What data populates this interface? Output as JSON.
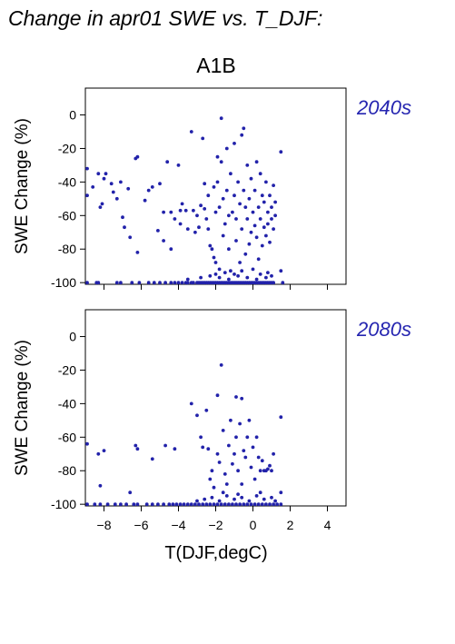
{
  "page": {
    "title": "Change in apr01 SWE vs. T_DJF:",
    "scenario": "A1B",
    "xlabel": "T(DJF,degC)"
  },
  "colors": {
    "points": "#2222aa",
    "period_label": "#2525b0",
    "axis": "#000000"
  },
  "chart_data": [
    {
      "type": "scatter",
      "period": "2040s",
      "title": "",
      "xlabel": "",
      "ylabel": "SWE Change (%)",
      "xlim": [
        -9,
        5
      ],
      "ylim": [
        -101,
        16
      ],
      "x_ticks": [
        -8,
        -6,
        -4,
        -2,
        0,
        2,
        4
      ],
      "y_ticks": [
        0,
        -20,
        -40,
        -60,
        -80,
        -100
      ],
      "grid": false,
      "points": [
        [
          -8.9,
          -32
        ],
        [
          -8.9,
          -48
        ],
        [
          -8.6,
          -43
        ],
        [
          -8.4,
          -100
        ],
        [
          -8.3,
          -35
        ],
        [
          -8.2,
          -55
        ],
        [
          -8.1,
          -53
        ],
        [
          -8.0,
          -38
        ],
        [
          -7.9,
          -35
        ],
        [
          -7.6,
          -41
        ],
        [
          -7.5,
          -46
        ],
        [
          -7.3,
          -50
        ],
        [
          -7.1,
          -40
        ],
        [
          -7.0,
          -61
        ],
        [
          -6.9,
          -67
        ],
        [
          -6.7,
          -44
        ],
        [
          -6.6,
          -73
        ],
        [
          -6.3,
          -26
        ],
        [
          -6.2,
          -25
        ],
        [
          -6.2,
          -82
        ],
        [
          -5.8,
          -51
        ],
        [
          -5.6,
          -45
        ],
        [
          -5.4,
          -43
        ],
        [
          -5.1,
          -69
        ],
        [
          -5.0,
          -41
        ],
        [
          -4.8,
          -58
        ],
        [
          -4.8,
          -75
        ],
        [
          -4.6,
          -28
        ],
        [
          -4.4,
          -58
        ],
        [
          -4.4,
          -80
        ],
        [
          -4.2,
          -62
        ],
        [
          -4.0,
          -30
        ],
        [
          -3.9,
          -57
        ],
        [
          -3.9,
          -65
        ],
        [
          -3.8,
          -53
        ],
        [
          -3.6,
          -57
        ],
        [
          -3.5,
          -68
        ],
        [
          -3.3,
          -10
        ],
        [
          -3.2,
          -57
        ],
        [
          -3.1,
          -70
        ],
        [
          -3.0,
          -60
        ],
        [
          -2.9,
          -67
        ],
        [
          -2.8,
          -54
        ],
        [
          -2.7,
          -14
        ],
        [
          -2.6,
          -41
        ],
        [
          -2.6,
          -56
        ],
        [
          -2.5,
          -62
        ],
        [
          -2.4,
          -48
        ],
        [
          -2.4,
          -68
        ],
        [
          -2.3,
          -78
        ],
        [
          -2.2,
          -80
        ],
        [
          -2.1,
          -43
        ],
        [
          -2.1,
          -85
        ],
        [
          -2.0,
          -58
        ],
        [
          -2.0,
          -88
        ],
        [
          -1.9,
          -25
        ],
        [
          -1.9,
          -40
        ],
        [
          -1.8,
          -92
        ],
        [
          -1.8,
          -55
        ],
        [
          -1.7,
          -2
        ],
        [
          -1.7,
          -28
        ],
        [
          -1.6,
          -50
        ],
        [
          -1.6,
          -72
        ],
        [
          -1.5,
          -65
        ],
        [
          -1.4,
          -20
        ],
        [
          -1.4,
          -45
        ],
        [
          -1.3,
          -80
        ],
        [
          -1.3,
          -60
        ],
        [
          -1.2,
          -35
        ],
        [
          -1.2,
          -93
        ],
        [
          -1.1,
          -58
        ],
        [
          -1.0,
          -17
        ],
        [
          -1.0,
          -48
        ],
        [
          -0.9,
          -75
        ],
        [
          -0.9,
          -62
        ],
        [
          -0.8,
          -40
        ],
        [
          -0.7,
          -53
        ],
        [
          -0.7,
          -88
        ],
        [
          -0.6,
          -12
        ],
        [
          -0.6,
          -68
        ],
        [
          -0.5,
          -8
        ],
        [
          -0.5,
          -45
        ],
        [
          -0.4,
          -55
        ],
        [
          -0.4,
          -83
        ],
        [
          -0.3,
          -30
        ],
        [
          -0.3,
          -62
        ],
        [
          -0.2,
          -50
        ],
        [
          -0.2,
          -77
        ],
        [
          -0.1,
          -38
        ],
        [
          -0.1,
          -70
        ],
        [
          0.0,
          -58
        ],
        [
          0.0,
          -92
        ],
        [
          0.1,
          -45
        ],
        [
          0.1,
          -66
        ],
        [
          0.2,
          -28
        ],
        [
          0.2,
          -73
        ],
        [
          0.3,
          -55
        ],
        [
          0.3,
          -86
        ],
        [
          0.4,
          -35
        ],
        [
          0.4,
          -62
        ],
        [
          0.5,
          -48
        ],
        [
          0.5,
          -78
        ],
        [
          0.6,
          -67
        ],
        [
          0.6,
          -52
        ],
        [
          0.7,
          -40
        ],
        [
          0.7,
          -72
        ],
        [
          0.8,
          -58
        ],
        [
          0.8,
          -65
        ],
        [
          0.9,
          -48
        ],
        [
          0.9,
          -76
        ],
        [
          1.0,
          -62
        ],
        [
          1.0,
          -55
        ],
        [
          1.1,
          -42
        ],
        [
          1.1,
          -68
        ],
        [
          1.2,
          -60
        ],
        [
          1.2,
          -52
        ],
        [
          1.5,
          -22
        ],
        [
          1.5,
          -93
        ],
        [
          1.6,
          -100
        ],
        [
          -8.9,
          -100
        ],
        [
          -8.3,
          -100
        ],
        [
          -7.3,
          -100
        ],
        [
          -7.1,
          -100
        ],
        [
          -6.5,
          -100
        ],
        [
          -6.1,
          -100
        ],
        [
          -5.6,
          -100
        ],
        [
          -5.3,
          -100
        ],
        [
          -5.0,
          -100
        ],
        [
          -4.7,
          -100
        ],
        [
          -4.4,
          -100
        ],
        [
          -4.2,
          -100
        ],
        [
          -4.0,
          -100
        ],
        [
          -3.8,
          -100
        ],
        [
          -3.6,
          -100
        ],
        [
          -3.5,
          -100
        ],
        [
          -3.3,
          -100
        ],
        [
          -3.2,
          -100
        ],
        [
          -3.0,
          -100
        ],
        [
          -2.9,
          -100
        ],
        [
          -2.8,
          -100
        ],
        [
          -2.7,
          -100
        ],
        [
          -2.6,
          -100
        ],
        [
          -2.5,
          -100
        ],
        [
          -2.4,
          -100
        ],
        [
          -2.3,
          -100
        ],
        [
          -2.2,
          -100
        ],
        [
          -2.1,
          -100
        ],
        [
          -2.0,
          -100
        ],
        [
          -1.9,
          -100
        ],
        [
          -1.8,
          -100
        ],
        [
          -1.7,
          -100
        ],
        [
          -1.6,
          -100
        ],
        [
          -1.5,
          -100
        ],
        [
          -1.4,
          -100
        ],
        [
          -1.3,
          -100
        ],
        [
          -1.2,
          -100
        ],
        [
          -1.1,
          -100
        ],
        [
          -1.0,
          -100
        ],
        [
          -0.9,
          -100
        ],
        [
          -0.8,
          -100
        ],
        [
          -0.7,
          -100
        ],
        [
          -0.6,
          -100
        ],
        [
          -0.5,
          -100
        ],
        [
          -0.4,
          -100
        ],
        [
          -0.3,
          -100
        ],
        [
          -0.2,
          -100
        ],
        [
          -0.1,
          -100
        ],
        [
          0.0,
          -100
        ],
        [
          0.1,
          -100
        ],
        [
          0.2,
          -100
        ],
        [
          0.3,
          -100
        ],
        [
          0.4,
          -100
        ],
        [
          0.5,
          -100
        ],
        [
          0.6,
          -100
        ],
        [
          0.7,
          -100
        ],
        [
          0.8,
          -100
        ],
        [
          0.9,
          -100
        ],
        [
          1.0,
          -100
        ],
        [
          1.1,
          -100
        ],
        [
          -2.8,
          -97
        ],
        [
          -2.3,
          -96
        ],
        [
          -1.8,
          -97
        ],
        [
          -1.3,
          -98
        ],
        [
          -0.8,
          -96
        ],
        [
          -0.3,
          -97
        ],
        [
          0.2,
          -98
        ],
        [
          0.7,
          -97
        ],
        [
          -3.5,
          -98
        ],
        [
          -2.0,
          -95
        ],
        [
          -1.0,
          -95
        ],
        [
          0.4,
          -95
        ],
        [
          1.0,
          -96
        ],
        [
          -1.5,
          -94
        ],
        [
          -0.6,
          -93
        ],
        [
          0.8,
          -94
        ]
      ]
    },
    {
      "type": "scatter",
      "period": "2080s",
      "title": "",
      "xlabel": "T(DJF,degC)",
      "ylabel": "SWE Change (%)",
      "xlim": [
        -9,
        5
      ],
      "ylim": [
        -101,
        16
      ],
      "x_ticks": [
        -8,
        -6,
        -4,
        -2,
        0,
        2,
        4
      ],
      "y_ticks": [
        0,
        -20,
        -40,
        -60,
        -80,
        -100
      ],
      "grid": false,
      "points": [
        [
          -8.9,
          -64
        ],
        [
          -8.3,
          -70
        ],
        [
          -8.2,
          -89
        ],
        [
          -8.0,
          -68
        ],
        [
          -6.6,
          -93
        ],
        [
          -6.3,
          -65
        ],
        [
          -6.2,
          -67
        ],
        [
          -5.4,
          -73
        ],
        [
          -4.7,
          -65
        ],
        [
          -4.2,
          -67
        ],
        [
          -3.3,
          -40
        ],
        [
          -3.0,
          -47
        ],
        [
          -2.8,
          -60
        ],
        [
          -2.7,
          -66
        ],
        [
          -2.5,
          -44
        ],
        [
          -2.4,
          -67
        ],
        [
          -2.3,
          -85
        ],
        [
          -2.2,
          -80
        ],
        [
          -2.1,
          -90
        ],
        [
          -1.9,
          -35
        ],
        [
          -1.9,
          -70
        ],
        [
          -1.8,
          -75
        ],
        [
          -1.7,
          -17
        ],
        [
          -1.6,
          -56
        ],
        [
          -1.5,
          -82
        ],
        [
          -1.4,
          -88
        ],
        [
          -1.3,
          -65
        ],
        [
          -1.2,
          -50
        ],
        [
          -1.1,
          -76
        ],
        [
          -1.0,
          -70
        ],
        [
          -0.9,
          -36
        ],
        [
          -0.9,
          -60
        ],
        [
          -0.8,
          -80
        ],
        [
          -0.7,
          -52
        ],
        [
          -0.6,
          -37
        ],
        [
          -0.6,
          -88
        ],
        [
          -0.5,
          -68
        ],
        [
          -0.4,
          -72
        ],
        [
          -0.3,
          -60
        ],
        [
          -0.2,
          -50
        ],
        [
          -0.1,
          -78
        ],
        [
          0.0,
          -66
        ],
        [
          0.1,
          -85
        ],
        [
          0.2,
          -60
        ],
        [
          0.3,
          -72
        ],
        [
          0.4,
          -80
        ],
        [
          0.5,
          -74
        ],
        [
          0.6,
          -80
        ],
        [
          0.7,
          -80
        ],
        [
          0.8,
          -79
        ],
        [
          0.9,
          -77
        ],
        [
          1.0,
          -80
        ],
        [
          1.1,
          -70
        ],
        [
          1.5,
          -48
        ],
        [
          1.5,
          -93
        ],
        [
          -8.9,
          -100
        ],
        [
          -8.5,
          -100
        ],
        [
          -8.2,
          -100
        ],
        [
          -7.8,
          -100
        ],
        [
          -7.4,
          -100
        ],
        [
          -7.1,
          -100
        ],
        [
          -6.8,
          -100
        ],
        [
          -6.4,
          -100
        ],
        [
          -6.2,
          -100
        ],
        [
          -5.7,
          -100
        ],
        [
          -5.4,
          -100
        ],
        [
          -5.1,
          -100
        ],
        [
          -4.8,
          -100
        ],
        [
          -4.5,
          -100
        ],
        [
          -4.3,
          -100
        ],
        [
          -4.1,
          -100
        ],
        [
          -3.9,
          -100
        ],
        [
          -3.7,
          -100
        ],
        [
          -3.5,
          -100
        ],
        [
          -3.3,
          -100
        ],
        [
          -3.1,
          -100
        ],
        [
          -2.9,
          -100
        ],
        [
          -2.7,
          -100
        ],
        [
          -2.5,
          -100
        ],
        [
          -2.3,
          -100
        ],
        [
          -2.1,
          -100
        ],
        [
          -1.9,
          -100
        ],
        [
          -1.7,
          -100
        ],
        [
          -1.5,
          -100
        ],
        [
          -1.3,
          -100
        ],
        [
          -1.1,
          -100
        ],
        [
          -0.9,
          -100
        ],
        [
          -0.7,
          -100
        ],
        [
          -0.5,
          -100
        ],
        [
          -0.3,
          -100
        ],
        [
          -0.1,
          -100
        ],
        [
          0.1,
          -100
        ],
        [
          0.3,
          -100
        ],
        [
          0.5,
          -100
        ],
        [
          0.7,
          -100
        ],
        [
          0.9,
          -100
        ],
        [
          1.1,
          -100
        ],
        [
          1.3,
          -100
        ],
        [
          1.5,
          -100
        ],
        [
          -3.0,
          -98
        ],
        [
          -2.6,
          -97
        ],
        [
          -2.2,
          -96
        ],
        [
          -1.8,
          -98
        ],
        [
          -1.4,
          -95
        ],
        [
          -1.0,
          -97
        ],
        [
          -0.6,
          -96
        ],
        [
          -0.2,
          -98
        ],
        [
          0.2,
          -95
        ],
        [
          0.6,
          -97
        ],
        [
          1.0,
          -96
        ],
        [
          -1.6,
          -93
        ],
        [
          -0.8,
          -94
        ],
        [
          0.4,
          -93
        ],
        [
          1.2,
          -98
        ]
      ]
    }
  ]
}
